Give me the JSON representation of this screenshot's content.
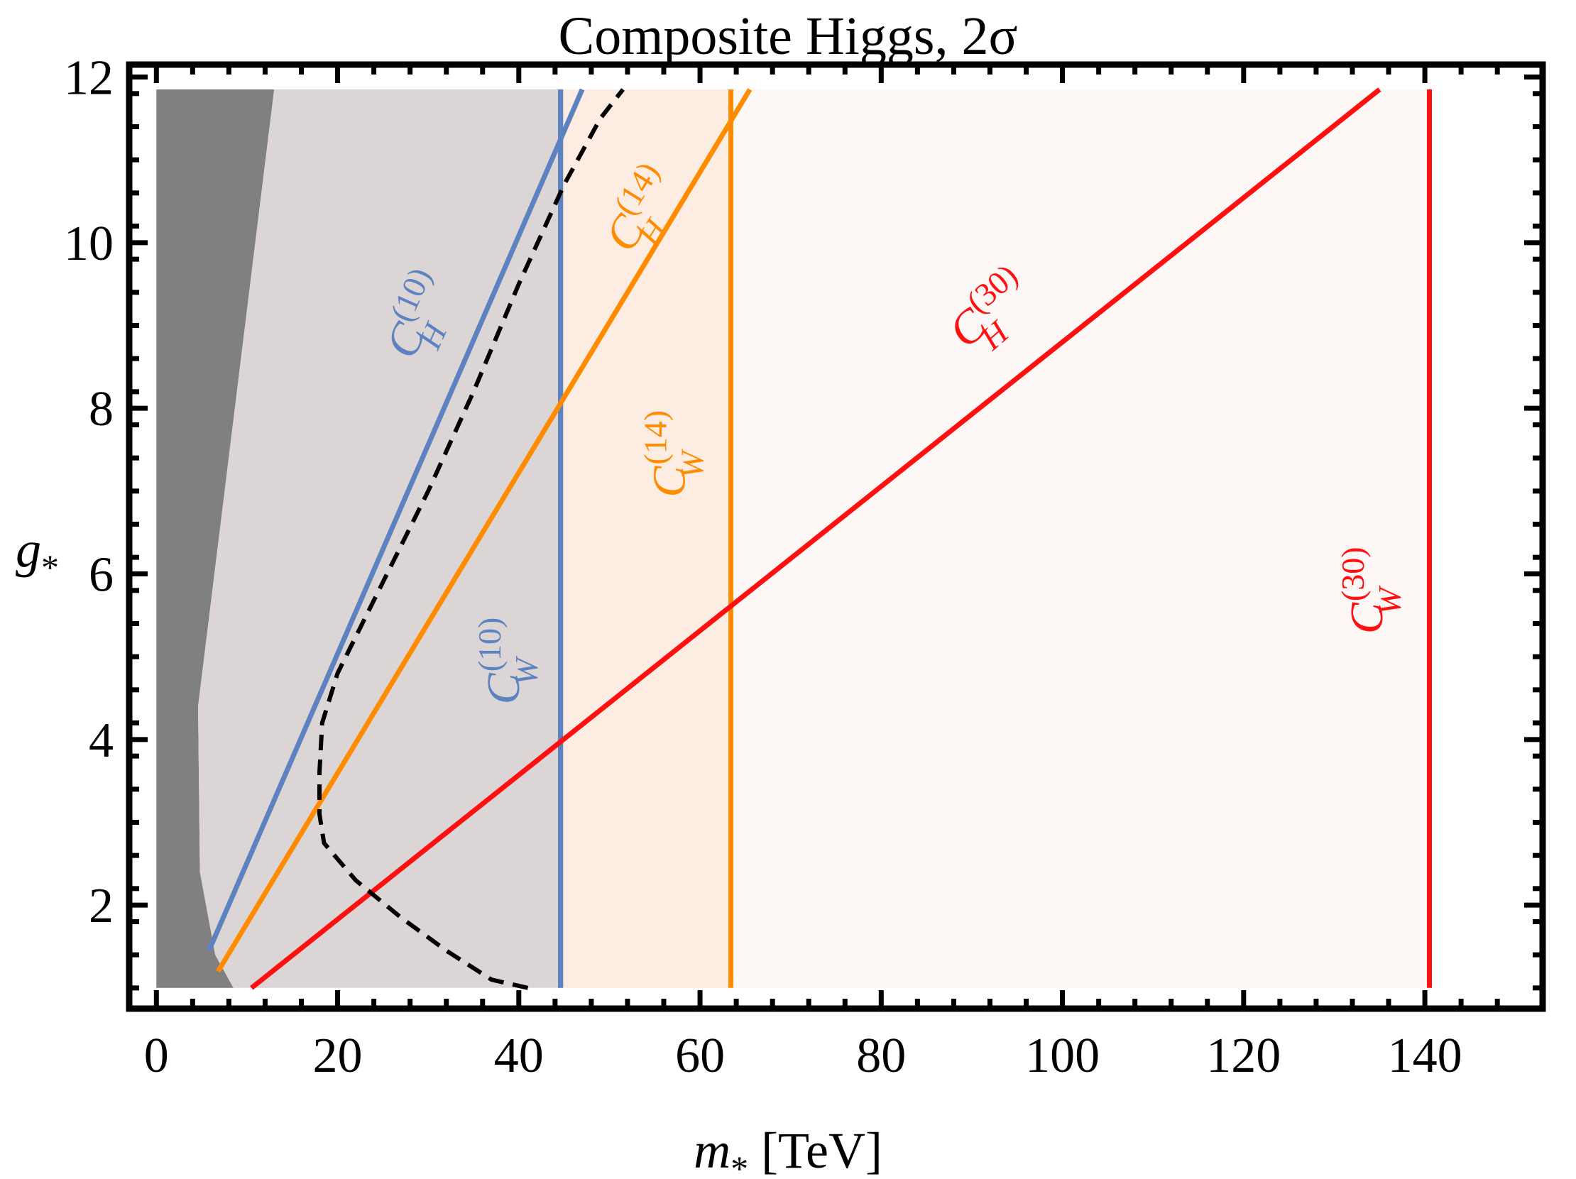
{
  "chart_data": {
    "type": "line",
    "title": "Composite Higgs, 2σ",
    "xlabel_var": "m",
    "xlabel_sub": "*",
    "xlabel_unit": "[TeV]",
    "ylabel_var": "g",
    "ylabel_sub": "*",
    "xlim": [
      -3,
      153
    ],
    "ylim": [
      0.75,
      12.15
    ],
    "plot_xrange": [
      0,
      150
    ],
    "plot_yrange": [
      1,
      11.85
    ],
    "xticks": [
      0,
      20,
      40,
      60,
      80,
      100,
      120,
      140
    ],
    "yticks": [
      2,
      4,
      6,
      8,
      10,
      12
    ],
    "x_tick_labels": [
      "0",
      "20",
      "40",
      "60",
      "80",
      "100",
      "120",
      "140"
    ],
    "y_tick_labels": [
      "2",
      "4",
      "6",
      "8",
      "10",
      "12"
    ],
    "colors": {
      "blue": "#5d82c0",
      "orange": "#ff8c00",
      "red": "#ff0f0f",
      "dark_region": "#808080",
      "gray_region": "#dcd5d5",
      "orange_region": "#fdece2",
      "red_region": "#fdf7f6",
      "dashed": "#000000"
    },
    "regions": [
      {
        "name": "excluded-unitarity",
        "color": "#808080",
        "points": [
          [
            0,
            1
          ],
          [
            8.5,
            1
          ],
          [
            6.5,
            1.4
          ],
          [
            4.8,
            2.4
          ],
          [
            4.6,
            4.4
          ],
          [
            13,
            11.85
          ],
          [
            0,
            11.85
          ]
        ]
      },
      {
        "name": "reach-10tev",
        "color": "#dcd5d5",
        "points": [
          [
            13,
            11.85
          ],
          [
            45,
            11.85
          ],
          [
            45,
            1
          ],
          [
            8.5,
            1
          ],
          [
            6.5,
            1.4
          ],
          [
            4.8,
            2.4
          ],
          [
            4.6,
            4.4
          ]
        ]
      },
      {
        "name": "reach-14tev",
        "color": "#fdece2",
        "points": [
          [
            45,
            11.85
          ],
          [
            63.5,
            11.85
          ],
          [
            63.5,
            1
          ],
          [
            45,
            1
          ]
        ]
      },
      {
        "name": "reach-30tev",
        "color": "#fdf7f6",
        "points": [
          [
            63.5,
            11.85
          ],
          [
            140.5,
            11.85
          ],
          [
            140.5,
            1
          ],
          [
            63.5,
            1
          ]
        ]
      }
    ],
    "series": [
      {
        "name": "C_H (10)",
        "color": "#5d82c0",
        "points": [
          [
            5.8,
            1.45
          ],
          [
            47,
            11.85
          ]
        ]
      },
      {
        "name": "C_W (10)",
        "color": "#5d82c0",
        "points": [
          [
            44.6,
            1
          ],
          [
            44.6,
            11.85
          ]
        ]
      },
      {
        "name": "C_H (14)",
        "color": "#ff8c00",
        "points": [
          [
            6.8,
            1.2
          ],
          [
            65.5,
            11.85
          ]
        ]
      },
      {
        "name": "C_W (14)",
        "color": "#ff8c00",
        "points": [
          [
            63.4,
            1
          ],
          [
            63.4,
            11.85
          ]
        ]
      },
      {
        "name": "C_H (30)",
        "color": "#ff0f0f",
        "points": [
          [
            10.5,
            1
          ],
          [
            135,
            11.85
          ]
        ]
      },
      {
        "name": "C_W (30)",
        "color": "#ff0f0f",
        "points": [
          [
            140.5,
            1
          ],
          [
            140.5,
            11.85
          ]
        ]
      }
    ],
    "dashed_curve": {
      "name": "combined-bound",
      "color": "#000000",
      "points": [
        [
          41,
          1
        ],
        [
          37,
          1.1
        ],
        [
          32,
          1.45
        ],
        [
          27,
          1.85
        ],
        [
          22,
          2.3
        ],
        [
          18.5,
          2.75
        ],
        [
          18,
          3.1
        ],
        [
          18,
          3.6
        ],
        [
          18.3,
          4.2
        ],
        [
          20,
          4.8
        ],
        [
          25,
          5.9
        ],
        [
          30,
          7.0
        ],
        [
          35,
          8.2
        ],
        [
          40,
          9.5
        ],
        [
          45,
          10.7
        ],
        [
          49,
          11.5
        ],
        [
          51.5,
          11.85
        ]
      ]
    },
    "annotations": [
      {
        "name": "label-ch10",
        "main": "C",
        "sup": "(10)",
        "sub": "H",
        "color": "#5d82c0",
        "x": 30.3,
        "y": 9.05,
        "angle": -66
      },
      {
        "name": "label-cw10",
        "main": "C",
        "sup": "(10)",
        "sub": "W",
        "color": "#5d82c0",
        "x": 40.0,
        "y": 4.95,
        "angle": -90
      },
      {
        "name": "label-ch14",
        "main": "C",
        "sup": "(14)",
        "sub": "H",
        "color": "#ff8c00",
        "x": 54.8,
        "y": 10.3,
        "angle": -58
      },
      {
        "name": "label-cw14",
        "main": "C",
        "sup": "(14)",
        "sub": "W",
        "color": "#ff8c00",
        "x": 58.3,
        "y": 7.45,
        "angle": -90
      },
      {
        "name": "label-ch30",
        "main": "C",
        "sup": "(30)",
        "sub": "H",
        "color": "#ff0f0f",
        "x": 93.0,
        "y": 9.05,
        "angle": -41
      },
      {
        "name": "label-cw30",
        "main": "C",
        "sup": "(30)",
        "sub": "W",
        "color": "#ff0f0f",
        "x": 135.3,
        "y": 5.8,
        "angle": -90
      }
    ]
  }
}
